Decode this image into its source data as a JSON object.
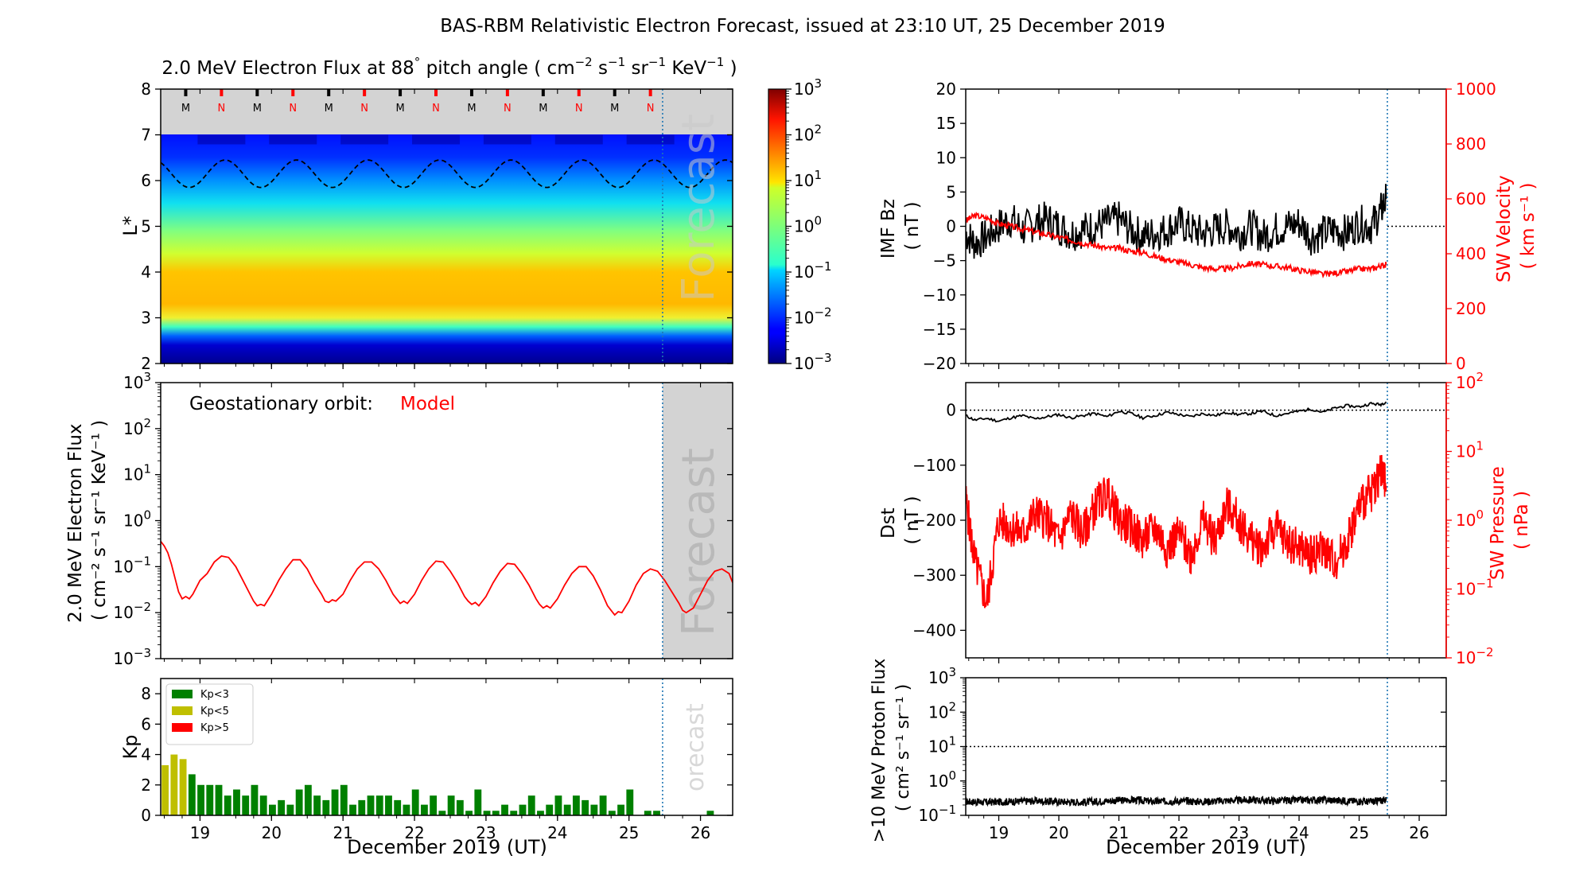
{
  "figure": {
    "title": "BAS-RBM Relativistic Electron Forecast, issued at 23:10 UT, 25 December 2019",
    "bottom_xlabel": "December 2019 (UT)",
    "day_ticks": [
      "19",
      "20",
      "21",
      "22",
      "23",
      "24",
      "25",
      "26"
    ],
    "forecast_word": "Forecast",
    "forecast_word_cut": "orecast"
  },
  "colors": {
    "forecast_grey": "#d3d3d3",
    "line_red": "#ff0000",
    "kp_green": "#008000",
    "kp_yellow": "#bfbf00",
    "kp_red": "#ff0000",
    "divider_blue": "#1f77b4"
  },
  "chart_data": [
    {
      "id": "flux-lstar",
      "type": "heatmap",
      "title": "2.0 MeV Electron Flux at 88° pitch angle ( cm⁻² s⁻¹ sr⁻¹ KeV⁻¹ )",
      "title_parts": {
        "a": "2.0 MeV Electron Flux at 88",
        "deg": "°",
        "b": " pitch angle ( cm",
        "e1": "−2",
        "b2": " s",
        "e2": "−1",
        "b3": " sr",
        "e3": "−1",
        "b4": " KeV",
        "e4": "−1",
        "b5": " )"
      },
      "ylabel": "L*",
      "ylim": [
        2,
        8
      ],
      "y_ticks": [
        "2",
        "3",
        "4",
        "5",
        "6",
        "7",
        "8"
      ],
      "xlim": [
        18.45,
        26.45
      ],
      "forecast_start": 25.47,
      "colorbar_ticks": [
        "10−3",
        "10−2",
        "10−1",
        "100",
        "101",
        "102",
        "103"
      ],
      "colorbar_base": "10",
      "colorbar_exps": [
        "−3",
        "−2",
        "−1",
        "0",
        "1",
        "2",
        "3"
      ],
      "colorbar_range_log10": [
        -3,
        3
      ],
      "noon_midnight_markers": [
        "M",
        "N",
        "M",
        "N",
        "M",
        "N",
        "M",
        "N",
        "M",
        "N",
        "M",
        "N",
        "M",
        "N"
      ],
      "marker_times": [
        18.8,
        19.3,
        19.8,
        20.3,
        20.8,
        21.3,
        21.8,
        22.3,
        22.8,
        23.3,
        23.8,
        24.3,
        24.8,
        25.3
      ],
      "geo_orbit_lstar_range": [
        5.85,
        6.45
      ],
      "profile_log10": [
        [
          2.0,
          -3.0
        ],
        [
          3.0,
          -3.0
        ],
        [
          3.2,
          -1.8
        ],
        [
          3.5,
          0.2
        ],
        [
          4.0,
          1.2
        ],
        [
          4.3,
          1.3
        ],
        [
          4.6,
          1.1
        ],
        [
          5.0,
          0.6
        ],
        [
          5.5,
          0.2
        ],
        [
          6.0,
          -0.3
        ],
        [
          6.5,
          -1.1
        ],
        [
          7.0,
          -1.9
        ]
      ]
    },
    {
      "id": "geo-flux",
      "type": "line",
      "annotation": "Geostationary orbit:",
      "annotation_series": "Model",
      "ylabel_lines": [
        "2.0 MeV Electron Flux",
        "( cm⁻² s⁻¹ sr⁻¹ KeV⁻¹ )"
      ],
      "y_ticks": [
        "10−3",
        "10−2",
        "10−1",
        "100",
        "101",
        "102",
        "103"
      ],
      "y_base": "10",
      "y_exps": [
        "−3",
        "−2",
        "−1",
        "0",
        "1",
        "2",
        "3"
      ],
      "ylim_log10": [
        -3,
        3
      ],
      "y_scale": "log",
      "xlim": [
        18.45,
        26.45
      ],
      "forecast_start": 25.47,
      "series": [
        {
          "name": "Model",
          "x": [
            18.45,
            18.5,
            18.55,
            18.6,
            18.65,
            18.7,
            18.75,
            18.8,
            18.85,
            18.9,
            19.0,
            19.1,
            19.2,
            19.3,
            19.4,
            19.5,
            19.6,
            19.7,
            19.75,
            19.8,
            19.85,
            19.9,
            20.0,
            20.1,
            20.2,
            20.3,
            20.4,
            20.5,
            20.6,
            20.7,
            20.75,
            20.8,
            20.85,
            20.9,
            21.0,
            21.1,
            21.2,
            21.3,
            21.4,
            21.5,
            21.6,
            21.7,
            21.75,
            21.8,
            21.85,
            21.9,
            22.0,
            22.1,
            22.2,
            22.3,
            22.4,
            22.5,
            22.6,
            22.7,
            22.75,
            22.8,
            22.85,
            22.9,
            23.0,
            23.1,
            23.2,
            23.3,
            23.4,
            23.5,
            23.6,
            23.7,
            23.75,
            23.8,
            23.85,
            23.9,
            24.0,
            24.1,
            24.2,
            24.3,
            24.4,
            24.5,
            24.6,
            24.7,
            24.75,
            24.8,
            24.85,
            24.9,
            25.0,
            25.1,
            25.2,
            25.3,
            25.4,
            25.5,
            25.6,
            25.7,
            25.75,
            25.8,
            25.85,
            25.9,
            26.0,
            26.1,
            26.2,
            26.3,
            26.4,
            26.45
          ],
          "log10_values": [
            -0.45,
            -0.55,
            -0.7,
            -0.95,
            -1.25,
            -1.55,
            -1.7,
            -1.65,
            -1.7,
            -1.6,
            -1.3,
            -1.15,
            -0.9,
            -0.77,
            -0.8,
            -1.0,
            -1.3,
            -1.6,
            -1.75,
            -1.85,
            -1.82,
            -1.85,
            -1.6,
            -1.3,
            -1.05,
            -0.85,
            -0.85,
            -1.05,
            -1.35,
            -1.6,
            -1.75,
            -1.78,
            -1.72,
            -1.75,
            -1.6,
            -1.3,
            -1.05,
            -0.9,
            -0.9,
            -1.05,
            -1.3,
            -1.6,
            -1.7,
            -1.8,
            -1.75,
            -1.8,
            -1.6,
            -1.3,
            -1.05,
            -0.88,
            -0.9,
            -1.1,
            -1.35,
            -1.65,
            -1.75,
            -1.82,
            -1.78,
            -1.85,
            -1.65,
            -1.35,
            -1.1,
            -0.93,
            -0.95,
            -1.15,
            -1.4,
            -1.7,
            -1.82,
            -1.9,
            -1.85,
            -1.9,
            -1.7,
            -1.4,
            -1.15,
            -1.0,
            -1.0,
            -1.2,
            -1.5,
            -1.85,
            -1.95,
            -2.05,
            -1.98,
            -2.0,
            -1.75,
            -1.4,
            -1.15,
            -1.05,
            -1.1,
            -1.3,
            -1.55,
            -1.8,
            -1.95,
            -2.0,
            -1.95,
            -1.9,
            -1.6,
            -1.3,
            -1.1,
            -1.05,
            -1.15,
            -1.35
          ]
        }
      ]
    },
    {
      "id": "kp",
      "type": "bar",
      "ylabel": "Kp",
      "ylim": [
        0,
        9
      ],
      "y_ticks": [
        "0",
        "2",
        "4",
        "6",
        "8"
      ],
      "xlim": [
        18.45,
        26.45
      ],
      "forecast_start": 25.47,
      "legend": [
        "Kp<3",
        "Kp<5",
        "Kp>5"
      ],
      "legend_position": "top-left",
      "bar_start": 18.45,
      "bar_width_days": 0.125,
      "values": [
        3.3,
        4.0,
        3.7,
        2.7,
        2.0,
        2.0,
        2.0,
        1.3,
        1.7,
        1.3,
        2.0,
        1.3,
        0.7,
        1.0,
        0.7,
        1.7,
        2.0,
        1.3,
        1.0,
        1.7,
        2.0,
        0.7,
        1.0,
        1.3,
        1.3,
        1.3,
        1.0,
        0.7,
        1.7,
        0.7,
        1.3,
        0.3,
        1.3,
        1.0,
        0.3,
        1.7,
        0.3,
        0.3,
        0.7,
        0.3,
        0.7,
        1.3,
        0.3,
        0.7,
        1.3,
        0.7,
        1.3,
        1.0,
        0.7,
        1.3,
        0.3,
        0.7,
        1.7,
        0.0,
        0.3,
        0.3,
        0.0,
        0.0,
        0.0,
        0.0,
        0.0,
        0.3,
        0.0,
        0.0,
        0.3,
        0.7,
        0.3,
        0.0,
        0.3,
        0.7,
        0.7,
        1.0,
        1.7,
        1.7,
        1.7,
        1.7,
        1.7,
        1.7,
        1.7,
        1.7,
        1.7,
        1.7,
        1.7,
        1.7,
        1.7,
        1.7,
        1.7,
        1.7,
        1.7,
        1.7,
        1.7,
        1.7,
        1.7,
        1.7,
        1.7,
        1.7,
        1.7,
        1.7,
        1.7,
        1.7
      ]
    },
    {
      "id": "imf-sw",
      "type": "line",
      "ylabel_lines": [
        "IMF Bz",
        "( nT )"
      ],
      "y_ticks": [
        "−20",
        "−15",
        "−10",
        "−5",
        "0",
        "5",
        "10",
        "15",
        "20"
      ],
      "ylim": [
        -20,
        20
      ],
      "ylabel2_lines": [
        "SW Velocity",
        "( km s⁻¹ )"
      ],
      "y2_ticks": [
        "0",
        "200",
        "400",
        "600",
        "800",
        "1000"
      ],
      "y2lim": [
        0,
        1000
      ],
      "xlim": [
        18.45,
        26.45
      ],
      "data_end": 25.47,
      "series": [
        {
          "name": "IMF Bz",
          "x": [
            18.45,
            18.6,
            18.8,
            19.0,
            19.2,
            19.4,
            19.6,
            19.8,
            20.0,
            20.2,
            20.4,
            20.6,
            20.8,
            21.0,
            21.2,
            21.4,
            21.6,
            21.8,
            22.0,
            22.2,
            22.4,
            22.6,
            22.8,
            23.0,
            23.2,
            23.4,
            23.6,
            23.8,
            24.0,
            24.2,
            24.4,
            24.6,
            24.8,
            25.0,
            25.2,
            25.35,
            25.45
          ],
          "values": [
            -1.0,
            -2.5,
            -1.5,
            0.0,
            1.0,
            -0.5,
            0.5,
            1.0,
            0.0,
            -1.0,
            -0.5,
            0.0,
            0.5,
            1.0,
            -0.5,
            -1.5,
            -1.0,
            -0.5,
            0.5,
            -0.5,
            -1.0,
            -0.5,
            0.0,
            -1.0,
            0.0,
            -1.5,
            -0.5,
            0.0,
            0.5,
            -1.5,
            -1.0,
            -0.5,
            -1.0,
            0.5,
            0.0,
            2.0,
            4.0
          ]
        },
        {
          "name": "SW Velocity",
          "x": [
            18.45,
            18.6,
            18.8,
            19.0,
            19.2,
            19.4,
            19.6,
            19.8,
            20.0,
            20.2,
            20.4,
            20.6,
            20.8,
            21.0,
            21.2,
            21.4,
            21.6,
            21.8,
            22.0,
            22.2,
            22.4,
            22.6,
            22.8,
            23.0,
            23.2,
            23.4,
            23.6,
            23.8,
            24.0,
            24.2,
            24.4,
            24.6,
            24.8,
            25.0,
            25.2,
            25.35,
            25.45
          ],
          "values": [
            520,
            540,
            530,
            510,
            500,
            490,
            480,
            470,
            460,
            450,
            440,
            430,
            420,
            420,
            410,
            405,
            390,
            380,
            370,
            360,
            350,
            345,
            345,
            355,
            365,
            360,
            355,
            350,
            340,
            335,
            325,
            330,
            335,
            345,
            345,
            355,
            360
          ]
        }
      ]
    },
    {
      "id": "dst-pressure",
      "type": "line",
      "ylabel_lines": [
        "Dst",
        "( nT )"
      ],
      "y_ticks": [
        "−400",
        "−300",
        "−200",
        "−100",
        "0"
      ],
      "ylim": [
        -450,
        50
      ],
      "ylabel2_lines": [
        "SW Pressure",
        "( nPa )"
      ],
      "y2_ticks": [
        "10−2",
        "10−1",
        "100",
        "101",
        "102"
      ],
      "y2_base": "10",
      "y2_exps": [
        "−2",
        "−1",
        "0",
        "1",
        "2"
      ],
      "y2lim_log10": [
        -2,
        2
      ],
      "y2_scale": "log",
      "xlim": [
        18.45,
        26.45
      ],
      "data_end": 25.47,
      "series": [
        {
          "name": "Dst",
          "x": [
            18.45,
            18.6,
            18.8,
            19.0,
            19.2,
            19.4,
            19.6,
            19.8,
            20.0,
            20.2,
            20.4,
            20.6,
            20.8,
            21.0,
            21.2,
            21.4,
            21.6,
            21.8,
            22.0,
            22.2,
            22.4,
            22.6,
            22.8,
            23.0,
            23.2,
            23.4,
            23.6,
            23.8,
            24.0,
            24.2,
            24.4,
            24.6,
            24.8,
            25.0,
            25.2,
            25.35,
            25.45
          ],
          "values": [
            -10,
            -18,
            -15,
            -20,
            -14,
            -10,
            -16,
            -12,
            -8,
            -14,
            -10,
            -6,
            -12,
            -2,
            -6,
            -14,
            -10,
            -4,
            -8,
            -12,
            -6,
            -10,
            -4,
            -8,
            -6,
            -2,
            -10,
            -6,
            -2,
            2,
            -4,
            4,
            8,
            6,
            12,
            10,
            15
          ]
        },
        {
          "name": "SW Pressure",
          "x": [
            18.45,
            18.6,
            18.8,
            19.0,
            19.2,
            19.4,
            19.6,
            19.8,
            20.0,
            20.2,
            20.4,
            20.6,
            20.8,
            21.0,
            21.2,
            21.4,
            21.6,
            21.8,
            22.0,
            22.2,
            22.4,
            22.6,
            22.8,
            23.0,
            23.2,
            23.4,
            23.6,
            23.8,
            24.0,
            24.2,
            24.4,
            24.6,
            24.8,
            25.0,
            25.2,
            25.35,
            25.45
          ],
          "log10_values": [
            0.3,
            -0.6,
            -1.2,
            0.0,
            -0.1,
            -0.2,
            0.1,
            0.0,
            -0.3,
            0.1,
            -0.2,
            0.2,
            0.4,
            0.0,
            -0.1,
            -0.3,
            -0.1,
            -0.4,
            -0.2,
            -0.5,
            0.0,
            -0.3,
            0.2,
            0.0,
            -0.3,
            -0.4,
            -0.1,
            -0.3,
            -0.4,
            -0.5,
            -0.4,
            -0.6,
            -0.3,
            0.2,
            0.4,
            0.7,
            0.5
          ]
        }
      ]
    },
    {
      "id": "proton-flux",
      "type": "line",
      "ylabel_lines": [
        ">10 MeV Proton Flux",
        "( cm² s⁻¹ sr⁻¹ )"
      ],
      "y_ticks": [
        "10−1",
        "100",
        "101",
        "102",
        "103"
      ],
      "y_base": "10",
      "y_exps": [
        "−1",
        "0",
        "1",
        "2",
        "3"
      ],
      "ylim_log10": [
        -1,
        3
      ],
      "y_scale": "log",
      "threshold": 10,
      "xlim": [
        18.45,
        26.45
      ],
      "data_end": 25.47,
      "series": [
        {
          "name": ">10 MeV Proton Flux",
          "x": [
            18.45,
            18.8,
            19.2,
            19.6,
            20.0,
            20.4,
            20.8,
            21.2,
            21.6,
            22.0,
            22.4,
            22.8,
            23.2,
            23.6,
            24.0,
            24.4,
            24.8,
            25.2,
            25.45
          ],
          "log10_values": [
            -0.6,
            -0.62,
            -0.6,
            -0.58,
            -0.6,
            -0.62,
            -0.58,
            -0.55,
            -0.6,
            -0.58,
            -0.6,
            -0.57,
            -0.55,
            -0.58,
            -0.56,
            -0.55,
            -0.58,
            -0.6,
            -0.55
          ]
        }
      ]
    }
  ]
}
